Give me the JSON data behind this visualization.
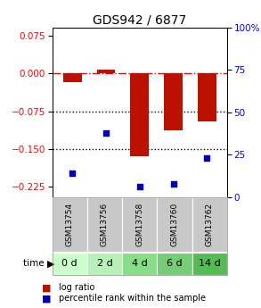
{
  "title": "GDS942 / 6877",
  "samples": [
    "GSM13754",
    "GSM13756",
    "GSM13758",
    "GSM13760",
    "GSM13762"
  ],
  "time_labels": [
    "0 d",
    "2 d",
    "4 d",
    "6 d",
    "14 d"
  ],
  "log_ratios": [
    -0.018,
    0.007,
    -0.165,
    -0.113,
    -0.095
  ],
  "percentile_ranks": [
    14,
    38,
    6,
    8,
    23
  ],
  "ylim_left": [
    -0.245,
    0.09
  ],
  "ylim_right": [
    0,
    100
  ],
  "yticks_left": [
    0.075,
    0,
    -0.075,
    -0.15,
    -0.225
  ],
  "yticks_right": [
    100,
    75,
    50,
    25,
    0
  ],
  "hlines": [
    0,
    -0.075,
    -0.15
  ],
  "hline_styles": [
    "dashdot",
    "dotted",
    "dotted"
  ],
  "hline_colors": [
    "red",
    "black",
    "black"
  ],
  "bar_color": "#bb1100",
  "scatter_color": "#0000bb",
  "title_fontsize": 10,
  "tick_fontsize": 7.5,
  "gsm_label_fontsize": 6.5,
  "time_label_fontsize": 8,
  "green_colors": [
    "#ccffcc",
    "#b8f0b8",
    "#88dd88",
    "#77cc77",
    "#55bb55"
  ],
  "gray_color": "#c8c8c8",
  "bar_width": 0.55,
  "legend_fontsize": 7,
  "legend_marker_fontsize": 8
}
